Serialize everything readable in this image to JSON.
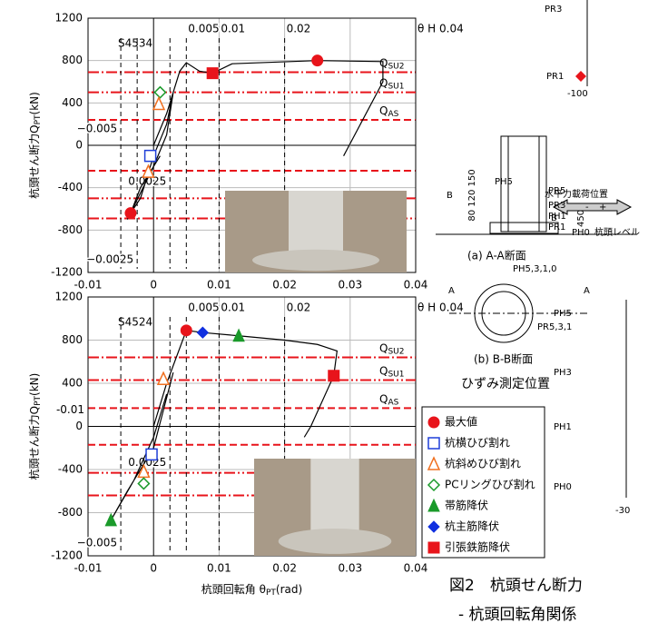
{
  "chart_data": [
    {
      "type": "scatter",
      "title": "S4534",
      "ylabel": {
        "main": "杭頭せん断力Q",
        "sub": "PT",
        "unit": "(kN)"
      },
      "xlim": [
        -0.01,
        0.04
      ],
      "ylim": [
        -1200,
        1200
      ],
      "xticks": [
        -0.01,
        0,
        0.01,
        0.02,
        0.03,
        0.04
      ],
      "yticks": [
        -1200,
        -800,
        -400,
        0,
        400,
        800,
        1200
      ],
      "curve": {
        "x": [
          0,
          0.002,
          0.004,
          0.005,
          0.007,
          0.009,
          0.012,
          0.025,
          0.035,
          0.035,
          0.029,
          null,
          0.001,
          -0.002,
          -0.0035,
          -0.002,
          0,
          0.002,
          0.003,
          0.002,
          0,
          -0.004
        ],
        "values": [
          0,
          300,
          700,
          780,
          700,
          680,
          770,
          800,
          790,
          600,
          -100,
          null,
          -100,
          -400,
          -640,
          -500,
          -100,
          200,
          500,
          100,
          -200,
          -700
        ]
      },
      "hlines": [
        {
          "value": 690,
          "label": {
            "main": "Q",
            "sub": "SU2"
          },
          "dash": "12 3 2 3"
        },
        {
          "value": 500,
          "label": {
            "main": "Q",
            "sub": "SU1"
          },
          "dash": "12 3 2 3 2 3"
        },
        {
          "value": 240,
          "label": {
            "main": "Q",
            "sub": "AS"
          },
          "dash": "8 4"
        },
        {
          "value": -240,
          "dash": "8 4"
        },
        {
          "value": -500,
          "dash": "12 3 2 3 2 3"
        },
        {
          "value": -690,
          "dash": "12 3 2 3"
        }
      ],
      "vlines": [
        {
          "value": 0.005,
          "label": "0.005",
          "side": "top"
        },
        {
          "value": 0.01,
          "label": "0.01",
          "side": "top"
        },
        {
          "value": 0.02,
          "label": "0.02",
          "side": "top"
        },
        {
          "value": 0.04,
          "label": "θ H 0.04",
          "side": "top"
        },
        {
          "value": -0.005,
          "label": "−0.005",
          "side": "mid"
        },
        {
          "value": 0.0025,
          "label": "0.0025",
          "side": "low"
        },
        {
          "value": -0.0025,
          "label": "−0.0025",
          "side": "bottom"
        }
      ],
      "series": [
        {
          "marker": "circle",
          "color": "#e8141b",
          "x": [
            0.025,
            -0.0035
          ],
          "values": [
            800,
            -640
          ]
        },
        {
          "marker": "square",
          "color": "#e8141b",
          "x": [
            0.009
          ],
          "values": [
            680
          ]
        },
        {
          "marker": "diamond-open",
          "color": "#1a9a2a",
          "x": [
            0.001
          ],
          "values": [
            500
          ]
        },
        {
          "marker": "triangle-open",
          "color": "#f07020",
          "x": [
            0.0008,
            -0.0008
          ],
          "values": [
            390,
            -250
          ]
        },
        {
          "marker": "square-open",
          "color": "#1f3fd8",
          "x": [
            -0.0005
          ],
          "values": [
            -100
          ]
        }
      ]
    },
    {
      "type": "scatter",
      "title": "S4524",
      "ylabel": {
        "main": "杭頭せん断力Q",
        "sub": "PT",
        "unit": "(kN)"
      },
      "xlabel": {
        "main": "杭頭回転角 θ",
        "sub": "PT",
        "unit": "(rad)"
      },
      "xlim": [
        -0.01,
        0.04
      ],
      "ylim": [
        -1200,
        1200
      ],
      "xticks": [
        -0.01,
        0,
        0.01,
        0.02,
        0.03,
        0.04
      ],
      "yticks": [
        -1200,
        -800,
        -400,
        0,
        400,
        800,
        1200
      ],
      "curve": {
        "x": [
          0,
          0.002,
          0.005,
          0.0075,
          0.013,
          0.02,
          0.025,
          0.028,
          0.0275,
          0.024,
          0.023,
          null,
          0.002,
          0,
          -0.003,
          -0.0065,
          -0.004,
          0,
          0.003
        ],
        "values": [
          0,
          400,
          890,
          870,
          840,
          800,
          760,
          700,
          470,
          0,
          -100,
          null,
          300,
          -100,
          -500,
          -870,
          -600,
          -200,
          500
        ]
      },
      "hlines": [
        {
          "value": 640,
          "label": {
            "main": "Q",
            "sub": "SU2"
          },
          "dash": "12 3 2 3"
        },
        {
          "value": 430,
          "label": {
            "main": "Q",
            "sub": "SU1"
          },
          "dash": "12 3 2 3 2 3"
        },
        {
          "value": 170,
          "label": {
            "main": "Q",
            "sub": "AS"
          },
          "dash": "8 4"
        },
        {
          "value": -170,
          "dash": "8 4"
        },
        {
          "value": -430,
          "dash": "12 3 2 3 2 3"
        },
        {
          "value": -640,
          "dash": "12 3 2 3"
        }
      ],
      "vlines": [
        {
          "value": 0.005,
          "label": "0.005",
          "side": "top"
        },
        {
          "value": 0.01,
          "label": "0.01",
          "side": "top"
        },
        {
          "value": 0.02,
          "label": "0.02",
          "side": "top"
        },
        {
          "value": 0.04,
          "label": "θ H 0.04",
          "side": "top"
        },
        {
          "value": -0.01,
          "label": "-0.01",
          "side": "mid"
        },
        {
          "value": 0.0025,
          "label": "0.0025",
          "side": "low"
        },
        {
          "value": -0.005,
          "label": "−0.005",
          "side": "bottom"
        }
      ],
      "series": [
        {
          "marker": "circle",
          "color": "#e8141b",
          "x": [
            0.005
          ],
          "values": [
            890
          ]
        },
        {
          "marker": "diamond",
          "color": "#1030e0",
          "x": [
            0.0075
          ],
          "values": [
            870
          ]
        },
        {
          "marker": "triangle",
          "color": "#1a9a2a",
          "x": [
            0.013,
            -0.0065
          ],
          "values": [
            840,
            -870
          ]
        },
        {
          "marker": "square",
          "color": "#e8141b",
          "x": [
            0.0275
          ],
          "values": [
            470
          ]
        },
        {
          "marker": "triangle-open",
          "color": "#f07020",
          "x": [
            0.0015,
            -0.0015
          ],
          "values": [
            440,
            -420
          ]
        },
        {
          "marker": "diamond-open",
          "color": "#1a9a2a",
          "x": [
            -0.0015
          ],
          "values": [
            -530
          ]
        },
        {
          "marker": "square-open",
          "color": "#1f3fd8",
          "x": [
            -0.0003
          ],
          "values": [
            -260
          ]
        }
      ]
    }
  ],
  "legend": [
    {
      "label": "最大値",
      "marker": "circle",
      "color": "#e8141b"
    },
    {
      "label": "杭横ひび割れ",
      "marker": "square-open",
      "color": "#1f3fd8"
    },
    {
      "label": "杭斜めひび割れ",
      "marker": "triangle-open",
      "color": "#f07020"
    },
    {
      "label": "PCリングひび割れ",
      "marker": "diamond-open",
      "color": "#1a9a2a"
    },
    {
      "label": "帯筋降伏",
      "marker": "triangle",
      "color": "#1a9a2a"
    },
    {
      "label": "杭主筋降伏",
      "marker": "diamond",
      "color": "#1030e0"
    },
    {
      "label": "引張鉄筋降伏",
      "marker": "square",
      "color": "#e8141b"
    }
  ],
  "diagram": {
    "labels": [
      "PR3",
      "PR1",
      "-100",
      "PH5",
      "水平力載荷位置",
      "-",
      "+",
      "PR5",
      "PR3",
      "PH1",
      "PR1",
      "PH0",
      "杭頭レベル",
      "450",
      "80 120 150",
      "B",
      "B",
      "(a) A-A断面",
      "PH5,3,1,0",
      "PR5,3,1",
      "A",
      "A",
      "(b) B-B断面",
      "ひずみ測定位置",
      "PH5",
      "PH3",
      "PH1",
      "PH0",
      "-30"
    ]
  },
  "caption": {
    "line1": "図2　杭頭せん断力",
    "line2": "- 杭頭回転角関係"
  }
}
